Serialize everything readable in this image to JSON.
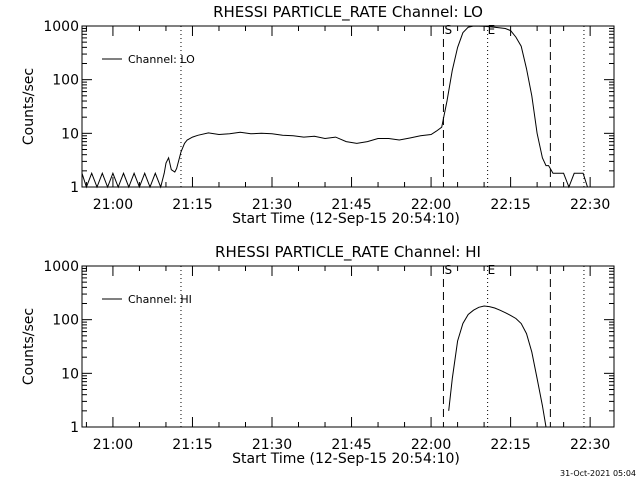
{
  "chart_data": [
    {
      "type": "line",
      "title": "RHESSI PARTICLE_RATE Channel: LO",
      "xlabel": "Start Time (12-Sep-15 20:54:10)",
      "ylabel": "Counts/sec",
      "y_scale": "log",
      "ylim": [
        1,
        1000
      ],
      "y_ticks": [
        "1",
        "10",
        "100",
        "1000"
      ],
      "xlim": [
        "20:54:10",
        "22:34:30"
      ],
      "x_ticks": [
        "21:00",
        "21:15",
        "21:30",
        "21:45",
        "22:00",
        "22:15",
        "22:30"
      ],
      "legend": {
        "position": "top-left",
        "entries": [
          "Channel: LO"
        ]
      },
      "markers": {
        "dotted": [
          "21:12:50",
          "22:10:40",
          "22:28:50"
        ],
        "dashed": [
          {
            "x": "22:02:20",
            "label": "S"
          },
          {
            "x": "22:22:30",
            "label": ""
          }
        ],
        "labels_only": [
          {
            "x": "22:10:40",
            "label": "E"
          }
        ]
      },
      "series": [
        {
          "name": "Channel: LO",
          "x": [
            "20:54:10",
            "20:55:00",
            "20:56:00",
            "20:57:00",
            "20:58:00",
            "20:59:00",
            "21:00:00",
            "21:01:00",
            "21:02:00",
            "21:03:00",
            "21:04:00",
            "21:05:00",
            "21:06:00",
            "21:07:00",
            "21:08:00",
            "21:09:00",
            "21:09:40",
            "21:10:00",
            "21:10:30",
            "21:11:00",
            "21:11:40",
            "21:12:00",
            "21:12:50",
            "21:13:30",
            "21:14:00",
            "21:15:00",
            "21:16:00",
            "21:18:00",
            "21:20:00",
            "21:22:00",
            "21:24:00",
            "21:26:00",
            "21:28:00",
            "21:30:00",
            "21:32:00",
            "21:34:00",
            "21:36:00",
            "21:38:00",
            "21:40:00",
            "21:42:00",
            "21:44:00",
            "21:46:00",
            "21:48:00",
            "21:50:00",
            "21:52:00",
            "21:54:00",
            "21:56:00",
            "21:58:00",
            "22:00:00",
            "22:01:00",
            "22:02:00",
            "22:03:00",
            "22:04:00",
            "22:05:00",
            "22:06:00",
            "22:07:00",
            "22:08:00",
            "22:10:00",
            "22:12:00",
            "22:14:00",
            "22:15:00",
            "22:16:00",
            "22:17:00",
            "22:18:00",
            "22:19:00",
            "22:20:00",
            "22:21:00",
            "22:21:40",
            "22:22:10",
            "22:23:00",
            "22:24:00",
            "22:25:00",
            "22:26:00",
            "22:27:00",
            "22:28:00",
            "22:28:40",
            "22:29:30"
          ],
          "y": [
            1.8,
            1,
            1.8,
            1,
            1.8,
            1,
            1.8,
            1,
            1.8,
            1,
            1.8,
            1,
            1.8,
            1,
            1.8,
            1,
            1.8,
            2.8,
            3.5,
            2.1,
            1.9,
            2.2,
            4.5,
            6.5,
            7.5,
            8.5,
            9.2,
            10.2,
            9.5,
            9.8,
            10.5,
            9.8,
            10,
            9.8,
            9.2,
            9,
            8.5,
            8.8,
            8,
            8.5,
            7,
            6.5,
            7,
            8,
            8,
            7.5,
            8.2,
            9,
            9.5,
            11,
            13,
            40,
            150,
            400,
            750,
            950,
            1000,
            990,
            950,
            900,
            820,
            620,
            420,
            160,
            50,
            10,
            3.5,
            2.5,
            2.5,
            1.8,
            1.8,
            1.8,
            1,
            1.8,
            1.8,
            1.8,
            1
          ]
        }
      ]
    },
    {
      "type": "line",
      "title": "RHESSI PARTICLE_RATE Channel: HI",
      "xlabel": "Start Time (12-Sep-15 20:54:10)",
      "ylabel": "Counts/sec",
      "y_scale": "log",
      "ylim": [
        1,
        1000
      ],
      "y_ticks": [
        "1",
        "10",
        "100",
        "1000"
      ],
      "xlim": [
        "20:54:10",
        "22:34:30"
      ],
      "x_ticks": [
        "21:00",
        "21:15",
        "21:30",
        "21:45",
        "22:00",
        "22:15",
        "22:30"
      ],
      "legend": {
        "position": "top-left",
        "entries": [
          "Channel: HI"
        ]
      },
      "markers": {
        "dotted": [
          "21:12:50",
          "22:10:40",
          "22:28:50"
        ],
        "dashed": [
          {
            "x": "22:02:20",
            "label": "S"
          },
          {
            "x": "22:22:30",
            "label": ""
          }
        ],
        "labels_only": [
          {
            "x": "22:10:40",
            "label": "E"
          }
        ]
      },
      "series": [
        {
          "name": "Channel: HI",
          "x": [
            "22:03:20",
            "22:04:00",
            "22:05:00",
            "22:06:00",
            "22:07:00",
            "22:08:00",
            "22:09:00",
            "22:10:00",
            "22:11:00",
            "22:12:00",
            "22:13:00",
            "22:14:00",
            "22:15:00",
            "22:16:00",
            "22:17:00",
            "22:18:00",
            "22:19:00",
            "22:20:00",
            "22:21:00",
            "22:21:40"
          ],
          "y": [
            2,
            8,
            40,
            85,
            125,
            150,
            170,
            180,
            175,
            165,
            150,
            135,
            120,
            105,
            85,
            55,
            25,
            8,
            2.5,
            1
          ]
        }
      ]
    }
  ],
  "footer": {
    "timestamp": "31-Oct-2021 05:04"
  },
  "colors": {
    "background": "#ffffff",
    "foreground": "#000000"
  }
}
